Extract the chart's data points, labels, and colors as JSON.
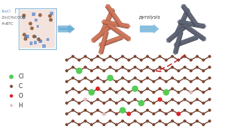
{
  "bg_color": "#ffffff",
  "beaker_fill": "#e8f4fa",
  "beaker_outline": "#8ab8d8",
  "beaker_liquid": "#f5e0d8",
  "dot_blue": "#5588cc",
  "dot_brown": "#8B5C3A",
  "rod_before": "#C87055",
  "rod_after": "#5A6070",
  "arrow_blue": "#6BAED6",
  "pyrolysis_text": "pyrolysis",
  "arrow_red": "#cc2222",
  "bond_color": "#6B3A2A",
  "node_color": "#7B4530",
  "cl_color": "#55cc55",
  "o_color": "#dd2222",
  "h_color": "#ddbbbb",
  "legend_labels": [
    "Cl",
    "C",
    "O",
    "H"
  ],
  "legend_colors": [
    "#55cc55",
    "#7B4530",
    "#dd2222",
    "#ddbbbb"
  ],
  "text_color": "#333333",
  "beaker_labels": [
    "NaCl",
    "Zn(CH₂COO)₂",
    "H₃BTC"
  ],
  "beaker_label_colors": [
    "#5588cc",
    "#555555",
    "#555555"
  ]
}
